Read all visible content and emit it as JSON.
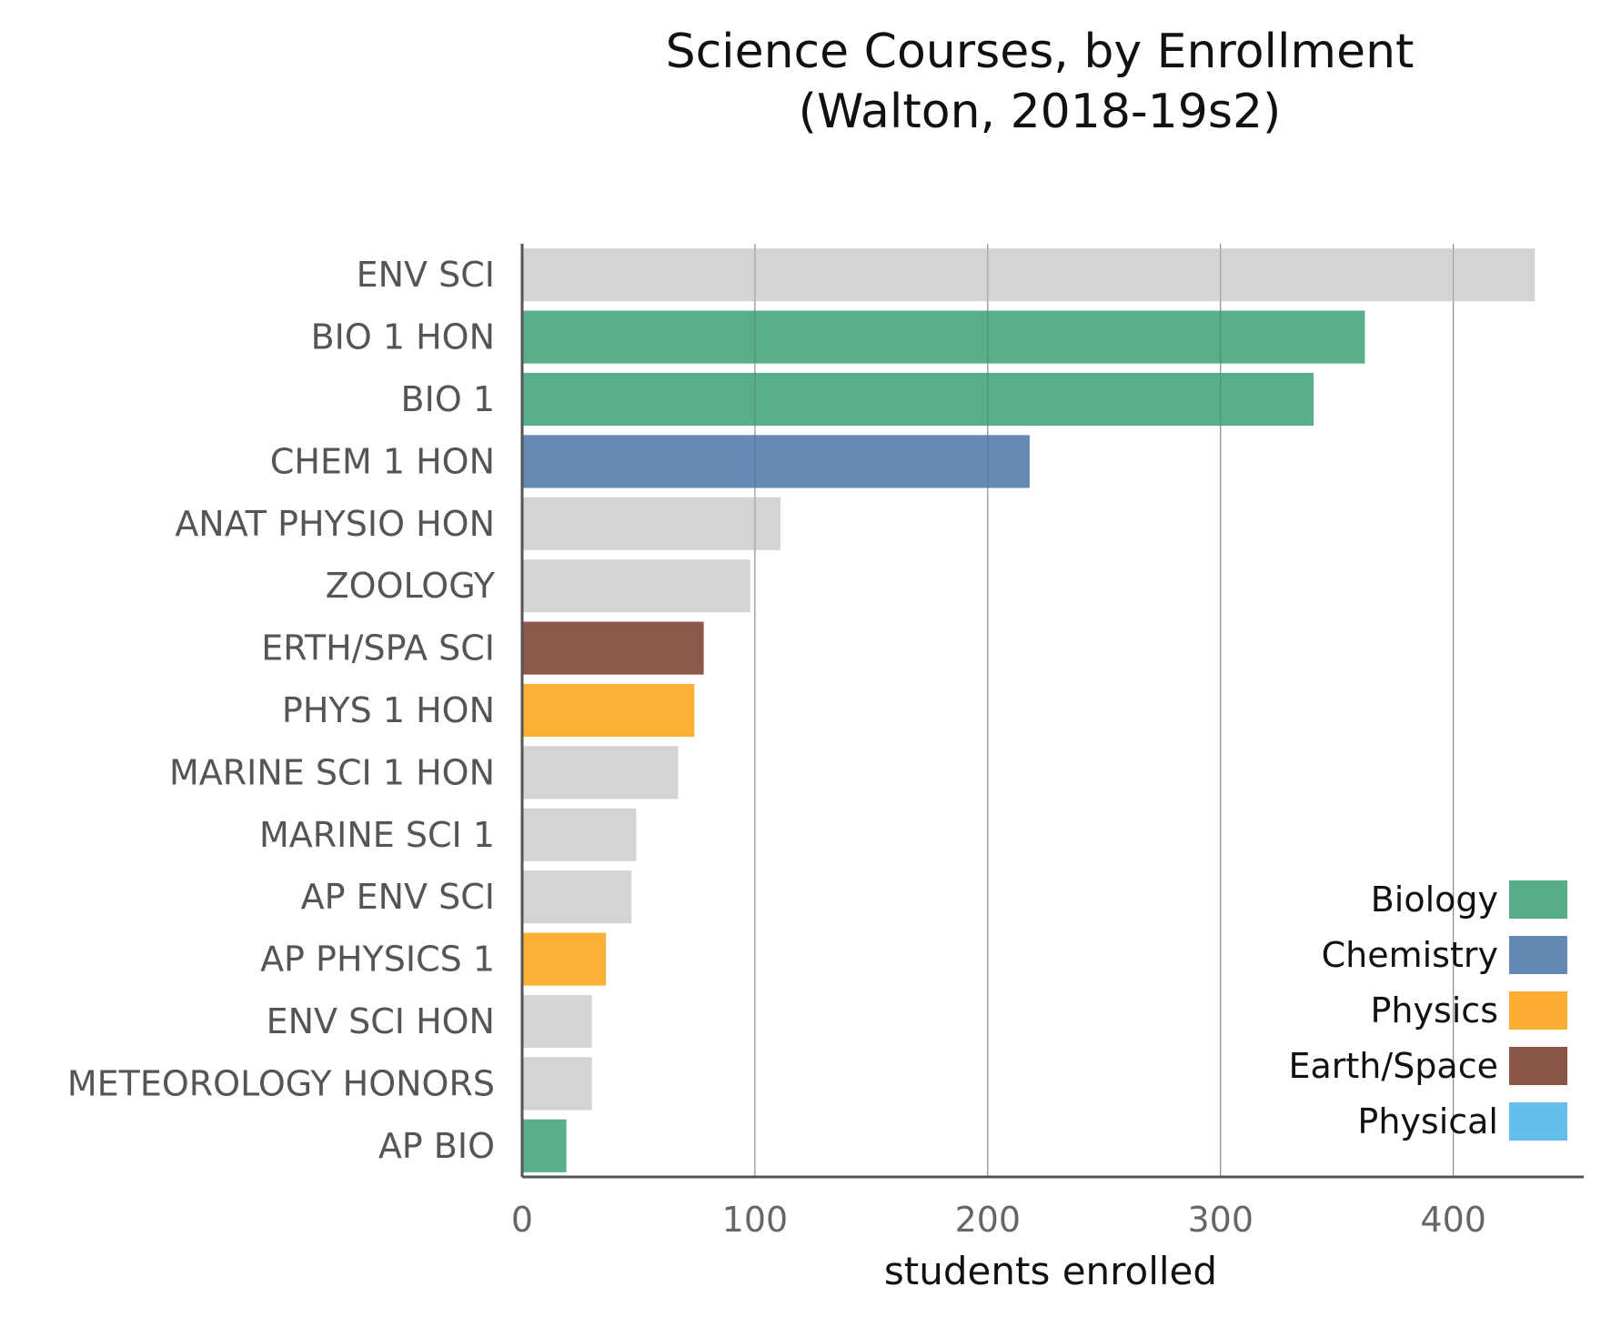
{
  "colors": {
    "other": "#d3d3d3",
    "Biology": "#55ad88",
    "Chemistry": "#6388b4",
    "Physics": "#fcae32",
    "Earth/Space": "#8b5547",
    "Physical": "#64bfed"
  },
  "chart_data": {
    "type": "bar",
    "orientation": "horizontal",
    "title_lines": [
      "Science Courses, by Enrollment",
      "(Walton, 2018-19s2)"
    ],
    "xlabel": "students enrolled",
    "ylabel": "",
    "xlim": [
      0,
      456
    ],
    "xticks": [
      0,
      100,
      200,
      300,
      400
    ],
    "grid": "vertical",
    "legend_position": "bottom-right",
    "legend": [
      "Biology",
      "Chemistry",
      "Physics",
      "Earth/Space",
      "Physical"
    ],
    "categories": [
      "ENV SCI",
      "BIO 1 HON",
      "BIO 1",
      "CHEM 1 HON",
      "ANAT PHYSIO HON",
      "ZOOLOGY",
      "ERTH/SPA SCI",
      "PHYS 1 HON",
      "MARINE SCI 1 HON",
      "MARINE SCI 1",
      "AP ENV SCI",
      "AP PHYSICS 1",
      "ENV SCI HON",
      "METEOROLOGY HONORS",
      "AP BIO"
    ],
    "values": [
      435,
      362,
      340,
      218,
      111,
      98,
      78,
      74,
      67,
      49,
      47,
      36,
      30,
      30,
      19
    ],
    "groups": [
      "other",
      "Biology",
      "Biology",
      "Chemistry",
      "other",
      "other",
      "Earth/Space",
      "Physics",
      "other",
      "other",
      "other",
      "Physics",
      "other",
      "other",
      "Biology"
    ]
  }
}
